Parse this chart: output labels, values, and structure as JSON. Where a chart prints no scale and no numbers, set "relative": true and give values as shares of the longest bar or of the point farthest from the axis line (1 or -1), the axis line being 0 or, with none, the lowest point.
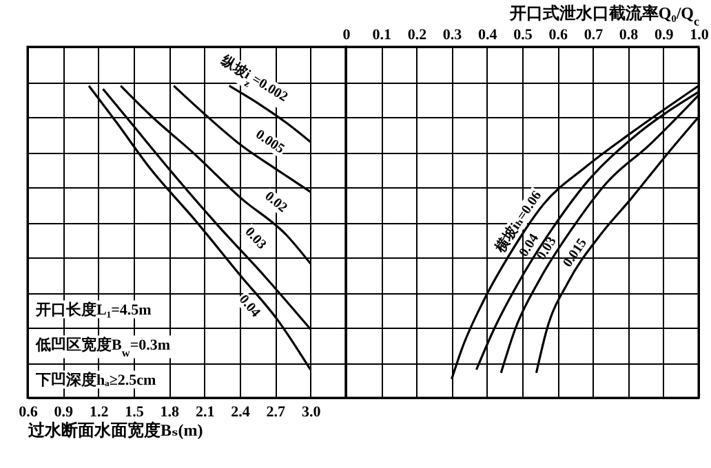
{
  "chart_data": [
    {
      "type": "line",
      "relative": true,
      "xlabel": "过水断面水面宽度Bₛ(m)",
      "xlim": [
        0.6,
        3.3
      ],
      "xticks": [
        0.6,
        0.9,
        1.2,
        1.5,
        1.8,
        2.1,
        2.4,
        2.7,
        {
          "value": 3,
          "label": "3.0"
        }
      ],
      "grid": true,
      "tick_labels": "x",
      "annotations": [
        "开口长度L₁=4.5m",
        "低凹区宽度B$_{w}$=0.3m",
        "下凹深度hₐ≥2.5cm"
      ],
      "series": [
        {
          "name": "纵坡i$_{z}$=0.002",
          "color": "#000000",
          "x": [
            2.31,
            2.57,
            2.8,
            3.0
          ],
          "values": [
            1,
            0.94,
            0.88,
            0.82
          ]
        },
        {
          "name": "0.005",
          "color": "#000000",
          "x": [
            1.84,
            2.1,
            2.41,
            2.72,
            3.0
          ],
          "values": [
            1,
            0.91,
            0.81,
            0.73,
            0.66
          ]
        },
        {
          "name": "0.02",
          "color": "#000000",
          "x": [
            1.39,
            1.63,
            2.02,
            2.41,
            2.8,
            3.0
          ],
          "values": [
            1,
            0.91,
            0.78,
            0.64,
            0.52,
            0.43
          ]
        },
        {
          "name": "0.03",
          "color": "#000000",
          "x": [
            1.24,
            1.48,
            1.83,
            2.22,
            2.61,
            3.0
          ],
          "values": [
            0.99,
            0.88,
            0.72,
            0.55,
            0.39,
            0.22
          ]
        },
        {
          "name": "0.04",
          "color": "#000000",
          "x": [
            1.12,
            1.36,
            1.63,
            2.02,
            2.41,
            2.72,
            3.0
          ],
          "values": [
            1,
            0.88,
            0.74,
            0.57,
            0.39,
            0.25,
            0.09
          ]
        }
      ]
    },
    {
      "type": "line",
      "relative": true,
      "xlabel": "开口式泄水口截流率Q₀/Q$_{c}$",
      "xlim": [
        0,
        1
      ],
      "xticks": [
        0,
        0.1,
        0.2,
        0.3,
        0.4,
        0.5,
        0.6,
        0.7,
        0.8,
        0.9,
        {
          "value": 1,
          "label": "1.0"
        }
      ],
      "grid": true,
      "tick_labels": "x",
      "series": [
        {
          "name": "横坡iₕ=0.06",
          "color": "#000000",
          "x": [
            0.3,
            0.33,
            0.39,
            0.47,
            0.56,
            0.68,
            0.81,
            1.0
          ],
          "values": [
            0.06,
            0.16,
            0.31,
            0.47,
            0.62,
            0.74,
            0.85,
            1
          ]
        },
        {
          "name": "0.04",
          "color": "#000000",
          "x": [
            0.37,
            0.42,
            0.5,
            0.59,
            0.69,
            0.81,
            1.0
          ],
          "values": [
            0.09,
            0.22,
            0.39,
            0.55,
            0.7,
            0.83,
            0.98
          ]
        },
        {
          "name": "0.03",
          "color": "#000000",
          "x": [
            0.44,
            0.48,
            0.55,
            0.64,
            0.74,
            0.86,
            1.0
          ],
          "values": [
            0.08,
            0.22,
            0.38,
            0.54,
            0.69,
            0.81,
            0.97
          ]
        },
        {
          "name": "0.015",
          "color": "#000000",
          "x": [
            0.54,
            0.57,
            0.63,
            0.72,
            0.81,
            0.91,
            1.0
          ],
          "values": [
            0.08,
            0.22,
            0.37,
            0.52,
            0.64,
            0.78,
            0.9
          ]
        }
      ]
    }
  ]
}
